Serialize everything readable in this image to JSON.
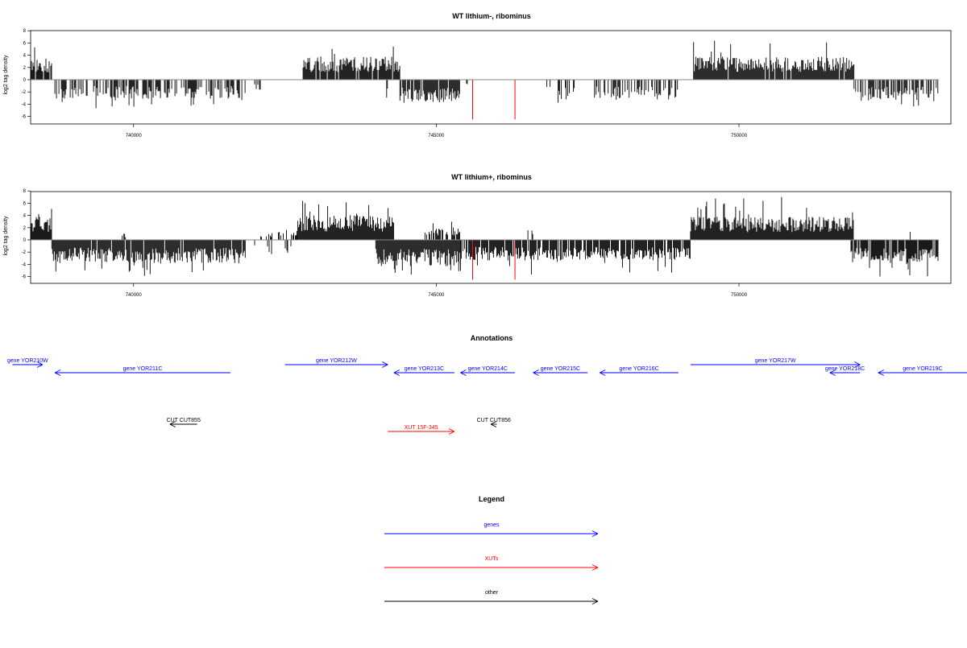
{
  "panels": [
    {
      "title": "WT lithium-, ribominus",
      "ylabel": "log2 tag density",
      "colors": {
        "bars": "#000000",
        "baseline": "#888888",
        "marker": "#ff0000"
      },
      "chart_data": {
        "type": "bar",
        "title": "WT lithium-, ribominus",
        "ylabel": "log2 tag density",
        "xlim": [
          738300,
          753500
        ],
        "ylim": [
          -7,
          8
        ],
        "xticks": [
          740000,
          745000,
          750000
        ],
        "xtick_labels": [
          "740000",
          "745000",
          "750000"
        ],
        "yticks": [
          -6,
          -4,
          -2,
          0,
          2,
          4,
          6,
          8
        ],
        "ytick_labels": [
          "-6",
          "-4",
          "-2",
          "0",
          "2",
          "4",
          "6",
          "8"
        ],
        "red_markers": [
          {
            "x": 745600,
            "value": -6.5
          },
          {
            "x": 746300,
            "value": -6.5
          }
        ],
        "segments": [
          {
            "start": 738300,
            "end": 738650,
            "sign": "+",
            "typical": 2.6,
            "max": 5.8,
            "density": 0.9
          },
          {
            "start": 738700,
            "end": 741850,
            "sign": "-",
            "typical": 2.3,
            "max": 4.8,
            "density": 0.55
          },
          {
            "start": 742000,
            "end": 742100,
            "sign": "-",
            "typical": 1.5,
            "max": 1.6,
            "density": 0.3
          },
          {
            "start": 742800,
            "end": 744400,
            "sign": "+",
            "typical": 2.8,
            "max": 6.0,
            "density": 0.95
          },
          {
            "start": 744100,
            "end": 744200,
            "sign": "-",
            "typical": 3.0,
            "max": 3.2,
            "density": 0.4
          },
          {
            "start": 744400,
            "end": 745400,
            "sign": "-",
            "typical": 2.8,
            "max": 4.2,
            "density": 0.8
          },
          {
            "start": 745500,
            "end": 745550,
            "sign": "-",
            "typical": 0.8,
            "max": 1.0,
            "density": 0.3
          },
          {
            "start": 746800,
            "end": 746900,
            "sign": "-",
            "typical": 1.8,
            "max": 2.6,
            "density": 0.4
          },
          {
            "start": 747000,
            "end": 747300,
            "sign": "-",
            "typical": 2.5,
            "max": 4.0,
            "density": 0.5
          },
          {
            "start": 747600,
            "end": 749000,
            "sign": "-",
            "typical": 2.5,
            "max": 4.0,
            "density": 0.55
          },
          {
            "start": 749250,
            "end": 751900,
            "sign": "+",
            "typical": 2.8,
            "max": 6.5,
            "density": 0.95
          },
          {
            "start": 751900,
            "end": 753300,
            "sign": "-",
            "typical": 2.5,
            "max": 4.5,
            "density": 0.6
          }
        ]
      }
    },
    {
      "title": "WT lithium+, ribominus",
      "ylabel": "log2 tag density",
      "colors": {
        "bars": "#000000",
        "baseline": "#888888",
        "marker": "#ff0000"
      },
      "chart_data": {
        "type": "bar",
        "title": "WT lithium+, ribominus",
        "ylabel": "log2 tag density",
        "xlim": [
          738300,
          753500
        ],
        "ylim": [
          -7,
          8
        ],
        "xticks": [
          740000,
          745000,
          750000
        ],
        "xtick_labels": [
          "740000",
          "745000",
          "750000"
        ],
        "yticks": [
          -6,
          -4,
          -2,
          0,
          2,
          4,
          6,
          8
        ],
        "ytick_labels": [
          "-6",
          "-4",
          "-2",
          "0",
          "2",
          "4",
          "6",
          "8"
        ],
        "red_markers": [
          {
            "x": 745600,
            "value": -6.5
          },
          {
            "x": 746300,
            "value": -6.5
          }
        ],
        "segments": [
          {
            "start": 738300,
            "end": 738650,
            "sign": "+",
            "typical": 2.8,
            "max": 5.8,
            "density": 0.9
          },
          {
            "start": 738650,
            "end": 741850,
            "sign": "-",
            "typical": 2.8,
            "max": 6.0,
            "density": 0.95
          },
          {
            "start": 739800,
            "end": 739900,
            "sign": "+",
            "typical": 0.8,
            "max": 1.4,
            "density": 0.4
          },
          {
            "start": 742000,
            "end": 742600,
            "sign": "-",
            "typical": 1.8,
            "max": 3.5,
            "density": 0.35
          },
          {
            "start": 742100,
            "end": 742700,
            "sign": "+",
            "typical": 1.0,
            "max": 1.8,
            "density": 0.35
          },
          {
            "start": 742700,
            "end": 744300,
            "sign": "+",
            "typical": 3.0,
            "max": 7.5,
            "density": 1.0
          },
          {
            "start": 744000,
            "end": 745400,
            "sign": "-",
            "typical": 3.2,
            "max": 6.0,
            "density": 1.0
          },
          {
            "start": 744800,
            "end": 745400,
            "sign": "+",
            "typical": 1.5,
            "max": 3.5,
            "density": 0.6
          },
          {
            "start": 745400,
            "end": 749200,
            "sign": "-",
            "typical": 2.5,
            "max": 6.0,
            "density": 0.85
          },
          {
            "start": 746500,
            "end": 746600,
            "sign": "+",
            "typical": 1.5,
            "max": 3.0,
            "density": 0.4
          },
          {
            "start": 749200,
            "end": 751900,
            "sign": "+",
            "typical": 2.8,
            "max": 7.2,
            "density": 1.0
          },
          {
            "start": 751850,
            "end": 753300,
            "sign": "-",
            "typical": 2.8,
            "max": 6.0,
            "density": 0.9
          },
          {
            "start": 752800,
            "end": 752900,
            "sign": "+",
            "typical": 1.0,
            "max": 2.0,
            "density": 0.4
          }
        ]
      }
    }
  ],
  "annotations": {
    "title": "Annotations",
    "items": [
      {
        "label": "gene YOR210W",
        "color": "#0000ff",
        "x_start": 738000,
        "x_end": 738500,
        "direction": "right",
        "row": 1
      },
      {
        "label": "gene YOR211C",
        "color": "#0000ff",
        "x_start": 738700,
        "x_end": 741600,
        "direction": "left",
        "row": 2
      },
      {
        "label": "gene YOR212W",
        "color": "#0000ff",
        "x_start": 742500,
        "x_end": 744200,
        "direction": "right",
        "row": 1
      },
      {
        "label": "gene YOR213C",
        "color": "#0000ff",
        "x_start": 744300,
        "x_end": 745300,
        "direction": "left",
        "row": 2
      },
      {
        "label": "gene YOR214C",
        "color": "#0000ff",
        "x_start": 745400,
        "x_end": 746300,
        "direction": "left",
        "row": 2
      },
      {
        "label": "gene YOR215C",
        "color": "#0000ff",
        "x_start": 746600,
        "x_end": 747500,
        "direction": "left",
        "row": 2
      },
      {
        "label": "gene YOR216C",
        "color": "#0000ff",
        "x_start": 747700,
        "x_end": 749000,
        "direction": "left",
        "row": 2
      },
      {
        "label": "gene YOR217W",
        "color": "#0000ff",
        "x_start": 749200,
        "x_end": 752000,
        "direction": "right",
        "row": 1
      },
      {
        "label": "gene YOR218C",
        "color": "#0000ff",
        "x_start": 751500,
        "x_end": 752000,
        "direction": "left",
        "row": 2
      },
      {
        "label": "gene YOR219C",
        "color": "#0000ff",
        "x_start": 752300,
        "x_end": 755000,
        "direction": "left",
        "row": 2
      },
      {
        "label": "CUT CUT855",
        "color": "#000000",
        "x_start": 740600,
        "x_end": 741050,
        "direction": "left",
        "row": 3
      },
      {
        "label": "XUT 15F-345",
        "color": "#ff0000",
        "x_start": 744200,
        "x_end": 745300,
        "direction": "right",
        "row": 4
      },
      {
        "label": "CUT CUT856",
        "color": "#000000",
        "x_start": 745900,
        "x_end": 746000,
        "direction": "left",
        "row": 3
      }
    ]
  },
  "legend": {
    "title": "Legend",
    "items": [
      {
        "label": "genes",
        "color": "#0000ff"
      },
      {
        "label": "XUTs",
        "color": "#ff0000"
      },
      {
        "label": "other",
        "color": "#000000"
      }
    ]
  }
}
